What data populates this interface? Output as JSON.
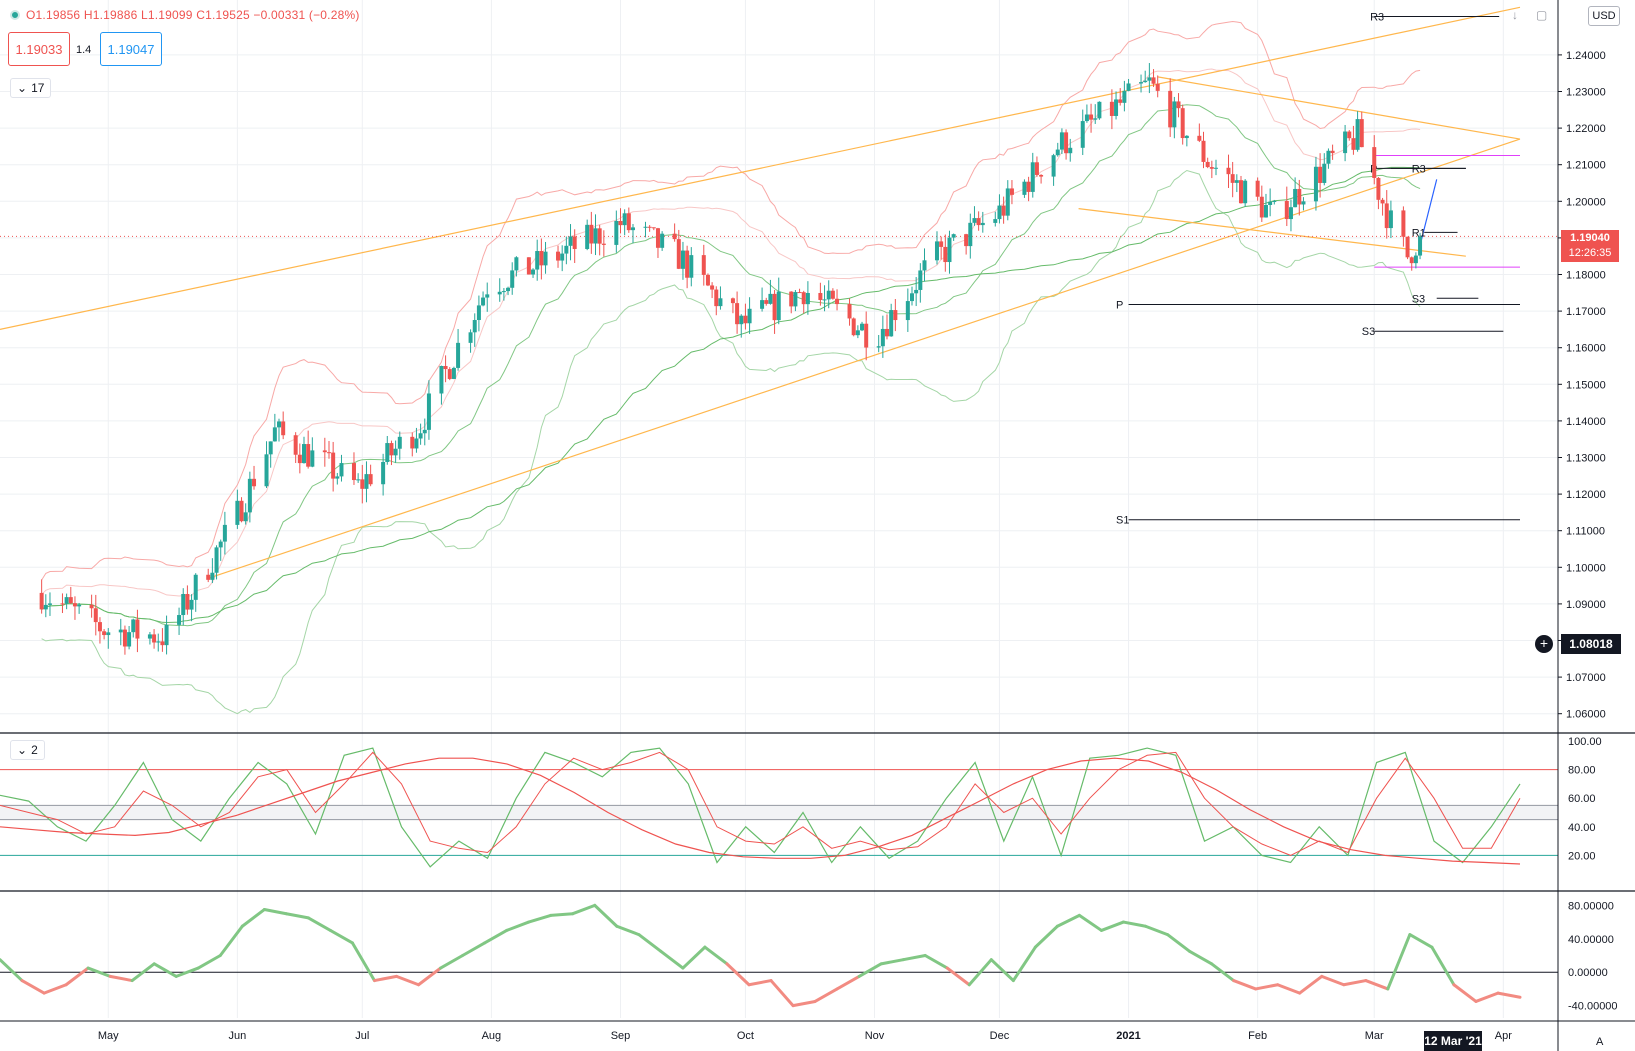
{
  "header": {
    "ohlc": "O1.19856 H1.19886 L1.19099 C1.19525 −0.00331 (−0.28%)",
    "sell_price": "1.19033",
    "spread": "1.4",
    "buy_price": "1.19047",
    "currency": "USD",
    "indicator_count_main": "17",
    "indicator_count_osc": "2",
    "up_color": "#26a69a",
    "down_color": "#ef5350"
  },
  "price_scale": {
    "ticks": [
      "1.24000",
      "1.23000",
      "1.22000",
      "1.21000",
      "1.20000",
      "1.19000",
      "1.18000",
      "1.17000",
      "1.16000",
      "1.15000",
      "1.14000",
      "1.13000",
      "1.12000",
      "1.11000",
      "1.10000",
      "1.09000",
      "1.08000",
      "1.07000",
      "1.06000"
    ],
    "last_price": "1.19040",
    "countdown": "12:26:35",
    "crosshair_price": "1.08018"
  },
  "time_axis": {
    "labels": [
      "May",
      "Jun",
      "Jul",
      "Aug",
      "Sep",
      "Oct",
      "Nov",
      "Dec",
      "2021",
      "Feb",
      "Mar",
      "Apr"
    ],
    "crosshair_date": "12 Mar '21",
    "right_label": "A"
  },
  "pivot_labels": {
    "r3_top": "R3",
    "p_upper": "P",
    "r3_lower": "R3",
    "r1": "R1",
    "p_mid": "P",
    "s3_right": "S3",
    "s3_mid": "S3",
    "s1": "S1"
  },
  "stoch_scale": [
    "100.00",
    "80.00",
    "60.00",
    "40.00",
    "20.00"
  ],
  "cci_scale": [
    "80.00000",
    "40.00000",
    "0.00000",
    "-40.00000"
  ],
  "chart_data": [
    {
      "type": "candlestick",
      "title": "",
      "timeframe": "daily",
      "x_range": [
        "2020-04-05",
        "2021-04-05"
      ],
      "ylim": [
        1.055,
        1.255
      ],
      "key_points": [
        {
          "date": "2020-04-15",
          "close": 1.093
        },
        {
          "date": "2020-04-30",
          "close": 1.083
        },
        {
          "date": "2020-05-15",
          "close": 1.081
        },
        {
          "date": "2020-05-31",
          "close": 1.112
        },
        {
          "date": "2020-06-10",
          "close": 1.137
        },
        {
          "date": "2020-06-30",
          "close": 1.122
        },
        {
          "date": "2020-07-15",
          "close": 1.139
        },
        {
          "date": "2020-07-31",
          "close": 1.177
        },
        {
          "date": "2020-08-15",
          "close": 1.184
        },
        {
          "date": "2020-09-01",
          "close": 1.194
        },
        {
          "date": "2020-09-15",
          "close": 1.185
        },
        {
          "date": "2020-09-30",
          "close": 1.166
        },
        {
          "date": "2020-10-15",
          "close": 1.176
        },
        {
          "date": "2020-11-01",
          "close": 1.163
        },
        {
          "date": "2020-11-15",
          "close": 1.184
        },
        {
          "date": "2020-12-01",
          "close": 1.197
        },
        {
          "date": "2020-12-15",
          "close": 1.215
        },
        {
          "date": "2021-01-06",
          "close": 1.232
        },
        {
          "date": "2021-01-20",
          "close": 1.211
        },
        {
          "date": "2021-02-05",
          "close": 1.196
        },
        {
          "date": "2021-02-25",
          "close": 1.218
        },
        {
          "date": "2021-03-05",
          "close": 1.194
        },
        {
          "date": "2021-03-09",
          "close": 1.185
        },
        {
          "date": "2021-03-12",
          "close": 1.1904
        }
      ],
      "last_close": 1.1904,
      "overlays": [
        "bollinger-bands",
        "moving-average",
        "trend-channel",
        "pivot-points"
      ]
    },
    {
      "type": "line",
      "title": "",
      "ylim": [
        0,
        100
      ],
      "levels": [
        80,
        20
      ],
      "series": [
        {
          "values": [
            62,
            58,
            40,
            30,
            55,
            85,
            45,
            30,
            60,
            85,
            70,
            35,
            90,
            95,
            40,
            12,
            30,
            18,
            60,
            92,
            85,
            75,
            92,
            95,
            70,
            15,
            40,
            22,
            50,
            15,
            40,
            18,
            30,
            60,
            85,
            30,
            75,
            20,
            88,
            90,
            95,
            90,
            30,
            40,
            20,
            15,
            40,
            20,
            85,
            92,
            30,
            15,
            40,
            70
          ]
        },
        {
          "values": [
            55,
            50,
            45,
            35,
            40,
            65,
            55,
            40,
            50,
            75,
            80,
            50,
            70,
            92,
            70,
            30,
            25,
            22,
            40,
            70,
            88,
            80,
            85,
            92,
            80,
            40,
            30,
            28,
            40,
            25,
            30,
            24,
            26,
            40,
            70,
            50,
            60,
            35,
            60,
            80,
            90,
            92,
            60,
            40,
            28,
            20,
            30,
            22,
            60,
            88,
            60,
            25,
            25,
            60
          ]
        },
        {
          "values": [
            40,
            38,
            36,
            35,
            34,
            36,
            42,
            48,
            56,
            64,
            72,
            78,
            84,
            88,
            88,
            84,
            76,
            64,
            50,
            38,
            28,
            22,
            19,
            18,
            18,
            20,
            26,
            34,
            46,
            58,
            70,
            80,
            86,
            88,
            86,
            78,
            66,
            52,
            40,
            30,
            24,
            20,
            18,
            16,
            15,
            14
          ]
        }
      ]
    },
    {
      "type": "area",
      "title": "",
      "ylim": [
        -50,
        90
      ],
      "series": [
        {
          "values": [
            15,
            -10,
            -25,
            -15,
            5,
            -5,
            -10,
            10,
            -5,
            5,
            20,
            55,
            75,
            70,
            65,
            50,
            35,
            -10,
            -5,
            -15,
            5,
            20,
            35,
            50,
            60,
            68,
            70,
            80,
            55,
            45,
            25,
            5,
            30,
            10,
            -15,
            -10,
            -40,
            -35,
            -20,
            -5,
            10,
            15,
            20,
            5,
            -15,
            15,
            -10,
            30,
            55,
            68,
            50,
            60,
            55,
            45,
            25,
            10,
            -10,
            -20,
            -15,
            -25,
            -5,
            -15,
            -10,
            -20,
            45,
            30,
            -15,
            -35,
            -25,
            -30
          ]
        }
      ]
    }
  ]
}
